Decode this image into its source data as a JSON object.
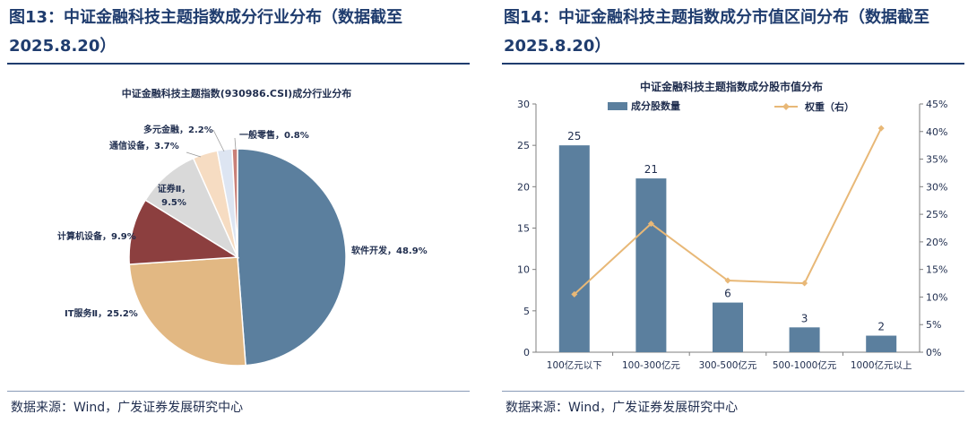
{
  "left": {
    "figure_title": "图13：中证金融科技主题指数成分行业分布（数据截至2025.8.20）",
    "source": "数据来源：Wind，广发证券发展研究中心"
  },
  "right": {
    "figure_title": "图14：中证金融科技主题指数成分市值区间分布（数据截至2025.8.20）",
    "source": "数据来源：Wind，广发证券发展研究中心"
  },
  "chart_data": [
    {
      "type": "pie",
      "title": "中证金融科技主题指数(930986.CSI)成分行业分布",
      "labels": [
        "软件开发",
        "IT服务Ⅱ",
        "计算机设备",
        "证券Ⅱ",
        "通信设备",
        "多元金融",
        "一般零售"
      ],
      "values": [
        48.9,
        25.2,
        9.9,
        9.5,
        3.7,
        2.2,
        0.8
      ],
      "display_labels": [
        "软件开发，48.9%",
        "IT服务Ⅱ，25.2%",
        "计算机设备，9.9%",
        "证券Ⅱ，9.5%",
        "通信设备，3.7%",
        "多元金融，2.2%",
        "一般零售，0.8%"
      ],
      "colors": [
        "#5b7f9e",
        "#e2b883",
        "#8c3f3f",
        "#d9d9d9",
        "#f6dcc2",
        "#dde5f2",
        "#c98078"
      ]
    },
    {
      "type": "bar",
      "title": "中证金融科技主题指数成分股市值分布",
      "categories": [
        "100亿元以下",
        "100-300亿元",
        "300-500亿元",
        "500-1000亿元",
        "1000亿元以上"
      ],
      "series": [
        {
          "name": "成分股数量",
          "axis": "left",
          "type": "bar",
          "values": [
            25,
            21,
            6,
            3,
            2
          ],
          "color": "#5b7f9e"
        },
        {
          "name": "权重（右）",
          "axis": "right",
          "type": "line",
          "values": [
            10.5,
            23.3,
            13.0,
            12.5,
            40.6
          ],
          "color": "#e8b877"
        }
      ],
      "ylim": [
        0,
        30
      ],
      "yticks": [
        0,
        5,
        10,
        15,
        20,
        25,
        30
      ],
      "y2lim": [
        0,
        45
      ],
      "y2ticks": [
        "0%",
        "5%",
        "10%",
        "15%",
        "20%",
        "25%",
        "30%",
        "35%",
        "40%",
        "45%"
      ],
      "legend_position": "top"
    }
  ]
}
